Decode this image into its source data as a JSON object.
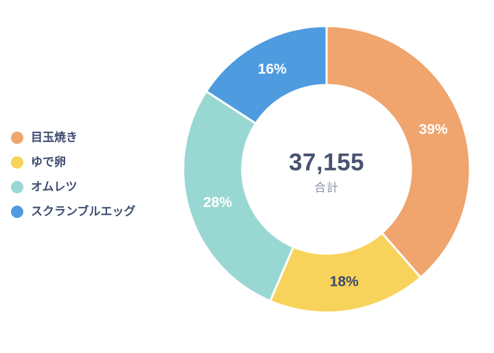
{
  "page": {
    "background": "#ffffff"
  },
  "chart_data": {
    "type": "pie",
    "subtype": "donut",
    "categories": [
      "目玉焼き",
      "ゆで卵",
      "オムレツ",
      "スクランブルエッグ"
    ],
    "values": [
      39,
      18,
      28,
      16
    ],
    "value_unit": "percent",
    "slice_labels": [
      "39%",
      "18%",
      "28%",
      "16%"
    ],
    "colors": [
      "#F0A46E",
      "#F8D35C",
      "#99D8D2",
      "#4E9BE0"
    ],
    "slice_label_colors": [
      "#FFFFFF",
      "#3A4A6B",
      "#FFFFFF",
      "#FFFFFF"
    ],
    "total_display": "37,155",
    "center_label": "合計",
    "title": "",
    "legend_position": "left",
    "start_angle": "top",
    "direction": "clockwise",
    "inner_radius_ratio": 0.59,
    "slice_gap_color": "#FFFFFF",
    "text_color": "#3D4C6F"
  }
}
